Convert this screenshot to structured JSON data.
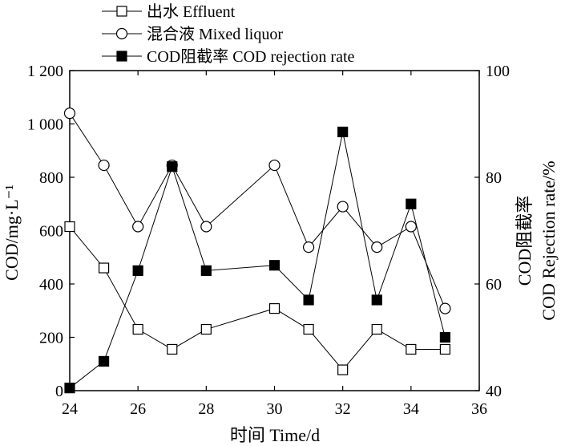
{
  "chart_data": {
    "type": "line",
    "x": [
      24,
      25,
      26,
      27,
      28,
      30,
      31,
      32,
      33,
      34,
      35
    ],
    "xlabel": "时间 Time/d",
    "ylabel_left": "COD/mg·L⁻¹",
    "ylabel_right_line1": "COD阻截率",
    "ylabel_right_line2": "COD Rejection rate/%",
    "xlim": [
      24,
      36
    ],
    "ylim_left": [
      0,
      1200
    ],
    "ylim_right": [
      40,
      100
    ],
    "x_ticks": [
      "24",
      "26",
      "28",
      "30",
      "32",
      "34",
      "36"
    ],
    "y_left_ticks": [
      "0",
      "200",
      "400",
      "600",
      "800",
      "1 000",
      "1 200"
    ],
    "y_right_ticks": [
      "40",
      "60",
      "80",
      "100"
    ],
    "grid": false,
    "legend_position": "top-left outside",
    "series": [
      {
        "name": "出水 Effluent",
        "axis": "left",
        "marker": "open-square",
        "values": [
          615,
          460,
          230,
          155,
          230,
          308,
          230,
          78,
          230,
          155,
          155
        ]
      },
      {
        "name": "混合液 Mixed liquor",
        "axis": "left",
        "marker": "open-circle",
        "values": [
          1040,
          845,
          615,
          845,
          615,
          845,
          538,
          690,
          538,
          615,
          308
        ]
      },
      {
        "name": "COD阻截率 COD rejection rate",
        "axis": "right",
        "marker": "filled-square",
        "values": [
          40.5,
          45.5,
          62.5,
          82,
          62.5,
          63.5,
          57,
          88.5,
          57,
          75,
          50
        ]
      }
    ]
  }
}
